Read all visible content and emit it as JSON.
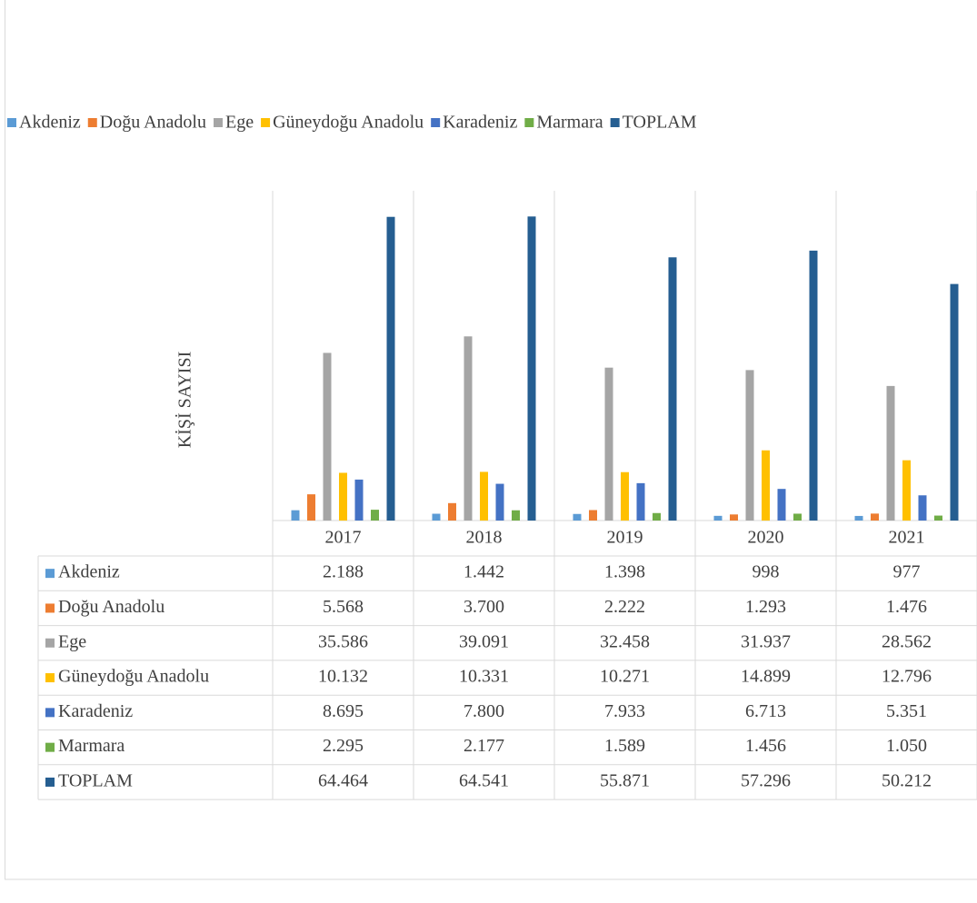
{
  "chart_data": {
    "type": "bar",
    "y_label": "KİŞİ SAYISI",
    "categories": [
      "2017",
      "2018",
      "2019",
      "2020",
      "2021"
    ],
    "ylim": [
      0,
      70000
    ],
    "series": [
      {
        "name": "Akdeniz",
        "color": "#5b9bd5",
        "values": [
          2188,
          1442,
          1398,
          998,
          977
        ],
        "value_labels": [
          "2.188",
          "1.442",
          "1.398",
          "998",
          "977"
        ]
      },
      {
        "name": "Doğu Anadolu",
        "color": "#ed7d31",
        "values": [
          5568,
          3700,
          2222,
          1293,
          1476
        ],
        "value_labels": [
          "5.568",
          "3.700",
          "2.222",
          "1.293",
          "1.476"
        ]
      },
      {
        "name": "Ege",
        "color": "#a5a5a5",
        "values": [
          35586,
          39091,
          32458,
          31937,
          28562
        ],
        "value_labels": [
          "35.586",
          "39.091",
          "32.458",
          "31.937",
          "28.562"
        ]
      },
      {
        "name": "Güneydoğu Anadolu",
        "color": "#ffc000",
        "values": [
          10132,
          10331,
          10271,
          14899,
          12796
        ],
        "value_labels": [
          "10.132",
          "10.331",
          "10.271",
          "14.899",
          "12.796"
        ]
      },
      {
        "name": "Karadeniz",
        "color": "#4472c4",
        "values": [
          8695,
          7800,
          7933,
          6713,
          5351
        ],
        "value_labels": [
          "8.695",
          "7.800",
          "7.933",
          "6.713",
          "5.351"
        ]
      },
      {
        "name": "Marmara",
        "color": "#70ad47",
        "values": [
          2295,
          2177,
          1589,
          1456,
          1050
        ],
        "value_labels": [
          "2.295",
          "2.177",
          "1.589",
          "1.456",
          "1.050"
        ]
      },
      {
        "name": "TOPLAM",
        "color": "#255e91",
        "values": [
          64464,
          64541,
          55871,
          57296,
          50212
        ],
        "value_labels": [
          "64.464",
          "64.541",
          "55.871",
          "57.296",
          "50.212"
        ]
      }
    ]
  }
}
